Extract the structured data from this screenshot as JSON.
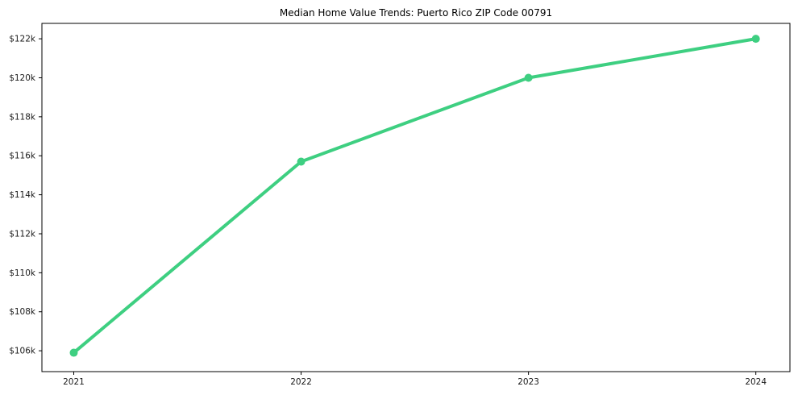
{
  "chart_data": {
    "type": "line",
    "title": "Median Home Value Trends: Puerto Rico ZIP Code 00791",
    "xlabel": "",
    "ylabel": "",
    "x": [
      2021,
      2022,
      2023,
      2024
    ],
    "xtick_labels": [
      "2021",
      "2022",
      "2023",
      "2024"
    ],
    "series": [
      {
        "name": "Median Home Value",
        "values": [
          105900,
          115700,
          120000,
          122000
        ]
      }
    ],
    "yticks": [
      106000,
      108000,
      110000,
      112000,
      114000,
      116000,
      118000,
      120000,
      122000
    ],
    "ytick_labels": [
      "$106k",
      "$108k",
      "$110k",
      "$112k",
      "$114k",
      "$116k",
      "$118k",
      "$120k",
      "$122k"
    ],
    "xlim": [
      2020.86,
      2024.15
    ],
    "ylim": [
      104930,
      122790
    ],
    "grid": false,
    "legend": "none",
    "marker": "circle",
    "colors": {
      "line": "#3ecf81",
      "marker": "#3ecf81",
      "axis": "#000000",
      "text": "#1a1a1a",
      "title": "#000000",
      "background": "#ffffff"
    }
  }
}
